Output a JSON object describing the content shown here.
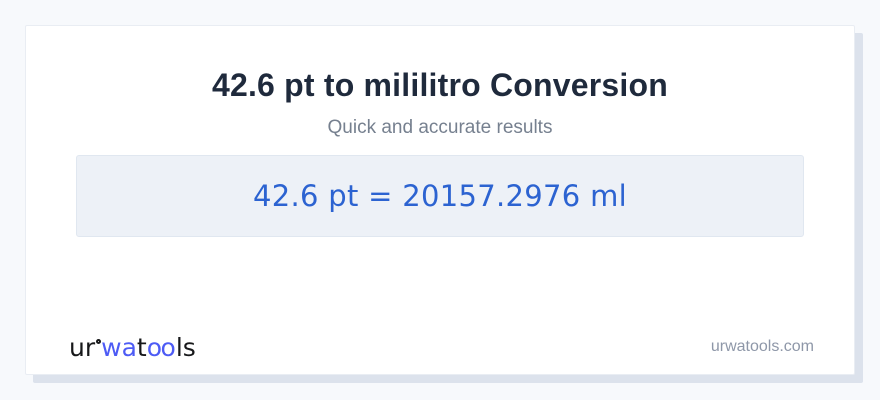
{
  "page": {
    "title": "42.6 pt to mililitro Conversion",
    "subtitle": "Quick and accurate results",
    "result": "42.6 pt = 20157.2976 ml",
    "conversion": {
      "from_value": "42.6",
      "from_unit": "pt",
      "to_unit_name": "mililitro",
      "to_value": "20157.2976",
      "to_unit": "ml"
    },
    "logo": {
      "part_ur": "ur",
      "part_wa": "wa",
      "part_t": "t",
      "part_oo": "oo",
      "part_ls": "ls"
    },
    "footer": {
      "domain": "urwatools.com"
    },
    "colors": {
      "page_background": "#f7f9fc",
      "card_background": "#ffffff",
      "card_shadow": "#dce2ec",
      "title_text": "#1f2a3c",
      "subtitle_text": "#76808f",
      "result_box_background": "#edf1f7",
      "result_text": "#2c63d1",
      "logo_dark": "#17181a",
      "logo_blue": "#4d5bf5",
      "domain_text": "#8e97a8"
    }
  }
}
